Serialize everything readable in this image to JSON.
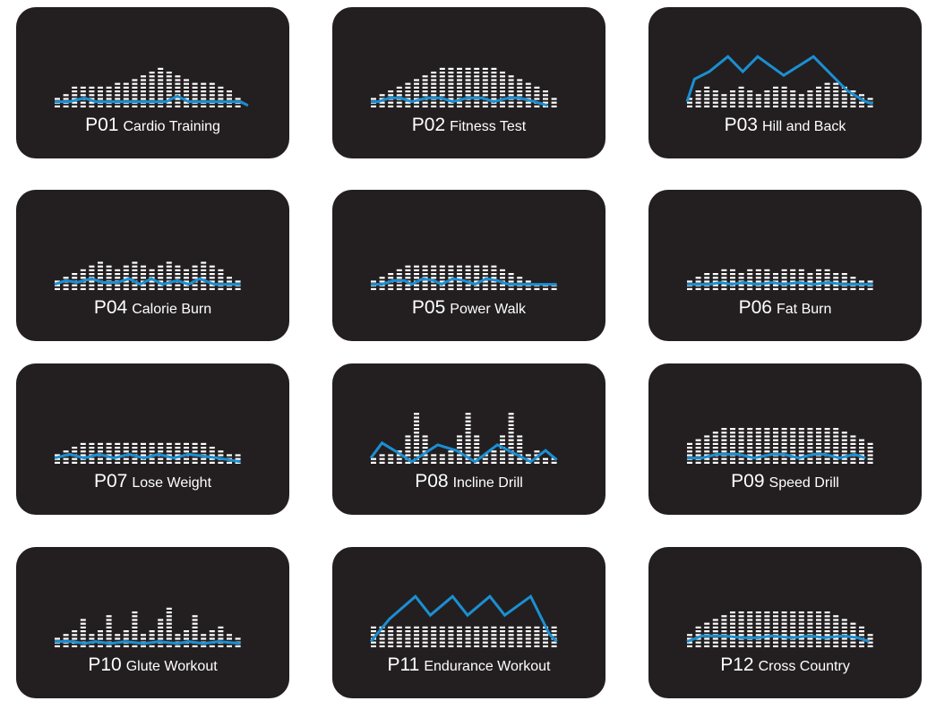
{
  "colors": {
    "card_bg": "#231f20",
    "bar": "#ffffff",
    "line": "#1b8fd2"
  },
  "programs": [
    {
      "code": "P01",
      "name": "Cardio Training",
      "bars": [
        3,
        4,
        6,
        6,
        6,
        6,
        6,
        7,
        7,
        8,
        9,
        10,
        11,
        10,
        9,
        8,
        7,
        7,
        7,
        6,
        5,
        3
      ],
      "profile": [
        [
          0,
          2
        ],
        [
          0.08,
          2
        ],
        [
          0.16,
          3
        ],
        [
          0.22,
          2
        ],
        [
          0.36,
          2
        ],
        [
          0.46,
          2
        ],
        [
          0.6,
          2
        ],
        [
          0.66,
          3.5
        ],
        [
          0.72,
          2
        ],
        [
          1,
          2
        ],
        [
          1.04,
          1
        ]
      ]
    },
    {
      "code": "P02",
      "name": "Fitness Test",
      "bars": [
        3,
        4,
        5,
        6,
        7,
        8,
        9,
        10,
        11,
        11,
        11,
        11,
        11,
        11,
        11,
        10,
        9,
        8,
        7,
        6,
        5,
        3
      ],
      "profile": [
        [
          0,
          2
        ],
        [
          0.04,
          2
        ],
        [
          0.1,
          3
        ],
        [
          0.16,
          3
        ],
        [
          0.22,
          2
        ],
        [
          0.3,
          3
        ],
        [
          0.38,
          3
        ],
        [
          0.44,
          2
        ],
        [
          0.52,
          3
        ],
        [
          0.6,
          3
        ],
        [
          0.66,
          2
        ],
        [
          0.74,
          3
        ],
        [
          0.8,
          3
        ],
        [
          0.88,
          2
        ],
        [
          0.95,
          1
        ]
      ]
    },
    {
      "code": "P03",
      "name": "Hill and Back",
      "bars": [
        3,
        5,
        6,
        5,
        4,
        5,
        6,
        5,
        4,
        5,
        6,
        6,
        5,
        4,
        5,
        6,
        7,
        7,
        6,
        5,
        4,
        3
      ],
      "profile": [
        [
          0,
          2
        ],
        [
          0.04,
          8
        ],
        [
          0.12,
          10
        ],
        [
          0.22,
          14
        ],
        [
          0.3,
          10
        ],
        [
          0.38,
          14
        ],
        [
          0.52,
          9
        ],
        [
          0.68,
          14
        ],
        [
          0.74,
          11
        ],
        [
          0.86,
          5
        ],
        [
          0.96,
          2
        ],
        [
          1,
          1.5
        ]
      ]
    },
    {
      "code": "P04",
      "name": "Calorie Burn",
      "bars": [
        3,
        4,
        5,
        6,
        7,
        8,
        7,
        6,
        7,
        8,
        7,
        6,
        7,
        8,
        7,
        6,
        7,
        8,
        7,
        6,
        4,
        3
      ],
      "profile": [
        [
          0,
          2
        ],
        [
          0.06,
          3
        ],
        [
          0.12,
          2.5
        ],
        [
          0.2,
          3.5
        ],
        [
          0.26,
          2.5
        ],
        [
          0.34,
          2.5
        ],
        [
          0.4,
          3.5
        ],
        [
          0.46,
          2
        ],
        [
          0.52,
          3.5
        ],
        [
          0.58,
          2
        ],
        [
          0.66,
          3
        ],
        [
          0.72,
          2
        ],
        [
          0.78,
          3.5
        ],
        [
          0.86,
          2
        ],
        [
          1,
          2
        ]
      ]
    },
    {
      "code": "P05",
      "name": "Power Walk",
      "bars": [
        3,
        4,
        5,
        6,
        7,
        7,
        7,
        7,
        7,
        7,
        7,
        7,
        7,
        7,
        7,
        6,
        5,
        4,
        3,
        2,
        2,
        2
      ],
      "profile": [
        [
          0,
          2
        ],
        [
          0.06,
          2
        ],
        [
          0.12,
          3
        ],
        [
          0.18,
          3
        ],
        [
          0.22,
          2
        ],
        [
          0.28,
          3.5
        ],
        [
          0.34,
          3
        ],
        [
          0.38,
          2
        ],
        [
          0.44,
          3.5
        ],
        [
          0.5,
          3
        ],
        [
          0.56,
          2
        ],
        [
          0.62,
          3.5
        ],
        [
          0.68,
          3
        ],
        [
          0.74,
          2
        ],
        [
          0.84,
          2
        ],
        [
          1,
          2
        ]
      ]
    },
    {
      "code": "P06",
      "name": "Fat Burn",
      "bars": [
        3,
        4,
        5,
        5,
        6,
        6,
        5,
        6,
        6,
        6,
        5,
        6,
        6,
        6,
        5,
        6,
        6,
        5,
        5,
        4,
        3,
        3
      ],
      "profile": [
        [
          0,
          2
        ],
        [
          0.12,
          2
        ],
        [
          0.18,
          2.5
        ],
        [
          0.24,
          2
        ],
        [
          0.3,
          2.5
        ],
        [
          0.38,
          2
        ],
        [
          0.46,
          2.5
        ],
        [
          0.52,
          2
        ],
        [
          0.6,
          2.5
        ],
        [
          0.68,
          2
        ],
        [
          0.76,
          2.5
        ],
        [
          0.84,
          2
        ],
        [
          1,
          2
        ]
      ]
    },
    {
      "code": "P07",
      "name": "Lose Weight",
      "bars": [
        3,
        4,
        5,
        6,
        6,
        6,
        6,
        6,
        6,
        6,
        6,
        6,
        6,
        6,
        6,
        6,
        6,
        6,
        5,
        4,
        3,
        3
      ],
      "profile": [
        [
          0,
          2
        ],
        [
          0.08,
          3
        ],
        [
          0.16,
          2
        ],
        [
          0.24,
          3
        ],
        [
          0.32,
          2
        ],
        [
          0.4,
          3
        ],
        [
          0.48,
          2
        ],
        [
          0.56,
          3
        ],
        [
          0.64,
          2
        ],
        [
          0.72,
          3
        ],
        [
          0.8,
          2.5
        ],
        [
          0.88,
          2
        ],
        [
          1,
          1
        ]
      ]
    },
    {
      "code": "P08",
      "name": "Incline Drill",
      "bars": [
        2,
        3,
        3,
        4,
        8,
        14,
        8,
        3,
        3,
        4,
        8,
        14,
        8,
        3,
        4,
        8,
        14,
        8,
        3,
        4,
        2,
        2
      ],
      "profile": [
        [
          0,
          2
        ],
        [
          0.06,
          6
        ],
        [
          0.16,
          3
        ],
        [
          0.22,
          1
        ],
        [
          0.36,
          5.5
        ],
        [
          0.46,
          4
        ],
        [
          0.56,
          1
        ],
        [
          0.68,
          5.5
        ],
        [
          0.78,
          3
        ],
        [
          0.86,
          1
        ],
        [
          0.94,
          4
        ],
        [
          1,
          1.5
        ]
      ]
    },
    {
      "code": "P09",
      "name": "Speed Drill",
      "bars": [
        6,
        7,
        8,
        9,
        10,
        10,
        10,
        10,
        10,
        10,
        10,
        10,
        10,
        10,
        10,
        10,
        10,
        10,
        9,
        8,
        7,
        6
      ],
      "profile": [
        [
          0,
          2
        ],
        [
          0.08,
          2
        ],
        [
          0.16,
          3
        ],
        [
          0.28,
          3
        ],
        [
          0.36,
          2
        ],
        [
          0.46,
          3
        ],
        [
          0.52,
          3
        ],
        [
          0.6,
          2
        ],
        [
          0.68,
          3
        ],
        [
          0.74,
          3
        ],
        [
          0.82,
          2
        ],
        [
          0.9,
          3
        ],
        [
          0.96,
          2
        ]
      ]
    },
    {
      "code": "P10",
      "name": "Glute Workout",
      "bars": [
        3,
        4,
        5,
        8,
        4,
        5,
        9,
        4,
        5,
        10,
        4,
        5,
        8,
        11,
        4,
        5,
        9,
        4,
        5,
        6,
        4,
        3
      ],
      "profile": [
        [
          0,
          2
        ],
        [
          0.1,
          2
        ],
        [
          0.16,
          1.5
        ],
        [
          0.22,
          2
        ],
        [
          0.3,
          1.5
        ],
        [
          0.38,
          2
        ],
        [
          0.48,
          1.5
        ],
        [
          0.56,
          2
        ],
        [
          0.66,
          1.5
        ],
        [
          0.72,
          2
        ],
        [
          0.8,
          1.5
        ],
        [
          0.88,
          2
        ],
        [
          1,
          1.5
        ]
      ]
    },
    {
      "code": "P11",
      "name": "Endurance Workout",
      "bars": [
        6,
        6,
        6,
        6,
        6,
        6,
        6,
        6,
        6,
        6,
        6,
        6,
        6,
        6,
        6,
        6,
        6,
        6,
        6,
        6,
        6,
        6
      ],
      "profile": [
        [
          0,
          2
        ],
        [
          0.1,
          8
        ],
        [
          0.24,
          14
        ],
        [
          0.32,
          9
        ],
        [
          0.44,
          14
        ],
        [
          0.52,
          9
        ],
        [
          0.64,
          14
        ],
        [
          0.72,
          9
        ],
        [
          0.86,
          14
        ],
        [
          0.96,
          4
        ],
        [
          1,
          2
        ]
      ]
    },
    {
      "code": "P12",
      "name": "Cross Country",
      "bars": [
        4,
        6,
        7,
        8,
        9,
        10,
        10,
        10,
        10,
        10,
        10,
        10,
        10,
        10,
        10,
        10,
        10,
        9,
        8,
        7,
        6,
        4
      ],
      "profile": [
        [
          0,
          2
        ],
        [
          0.08,
          3.5
        ],
        [
          0.2,
          3.5
        ],
        [
          0.3,
          3
        ],
        [
          0.38,
          3
        ],
        [
          0.46,
          3.5
        ],
        [
          0.56,
          3
        ],
        [
          0.66,
          3.5
        ],
        [
          0.74,
          3
        ],
        [
          0.84,
          3.5
        ],
        [
          0.92,
          3
        ],
        [
          0.98,
          2
        ]
      ]
    }
  ]
}
